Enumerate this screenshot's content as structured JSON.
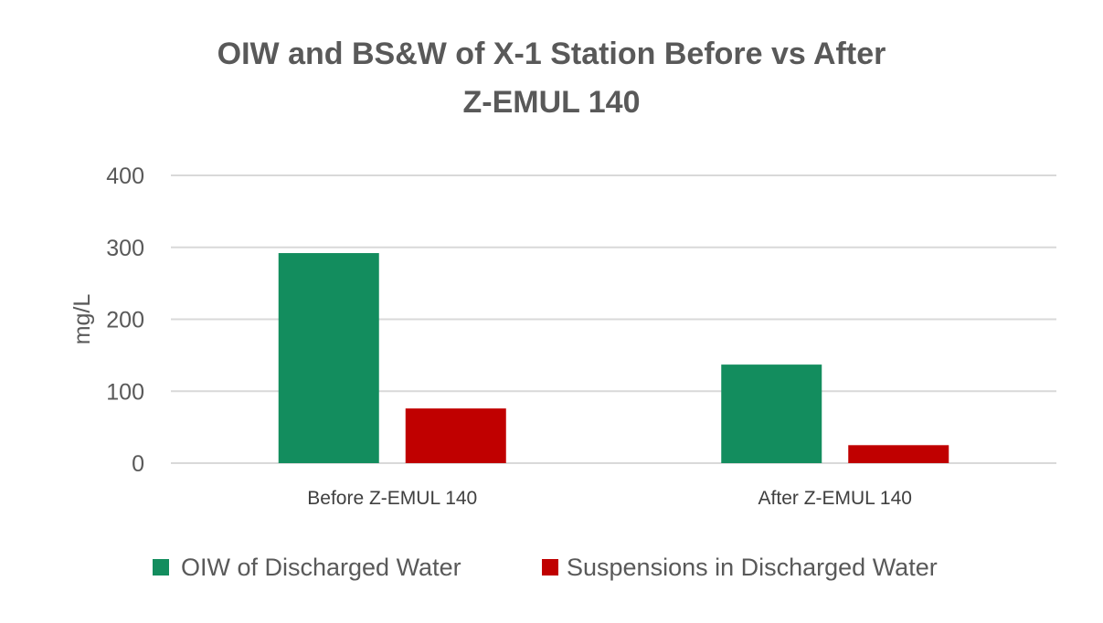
{
  "chart_data": {
    "type": "bar",
    "title_lines": [
      "OIW and BS&W of X-1 Station Before vs After",
      "Z-EMUL 140"
    ],
    "ylabel": "mg/L",
    "xlabel": "",
    "categories": [
      "Before Z-EMUL 140",
      "After Z-EMUL 140"
    ],
    "series": [
      {
        "name": "OIW of Discharged Water",
        "values": [
          292,
          137
        ],
        "color": "#138D5E"
      },
      {
        "name": "Suspensions in Discharged Water",
        "values": [
          76,
          25
        ],
        "color": "#C00000"
      }
    ],
    "ylim": [
      0,
      400
    ],
    "yticks": [
      "0",
      "100",
      "200",
      "300",
      "400"
    ],
    "grid": true,
    "legend_position": "bottom"
  }
}
